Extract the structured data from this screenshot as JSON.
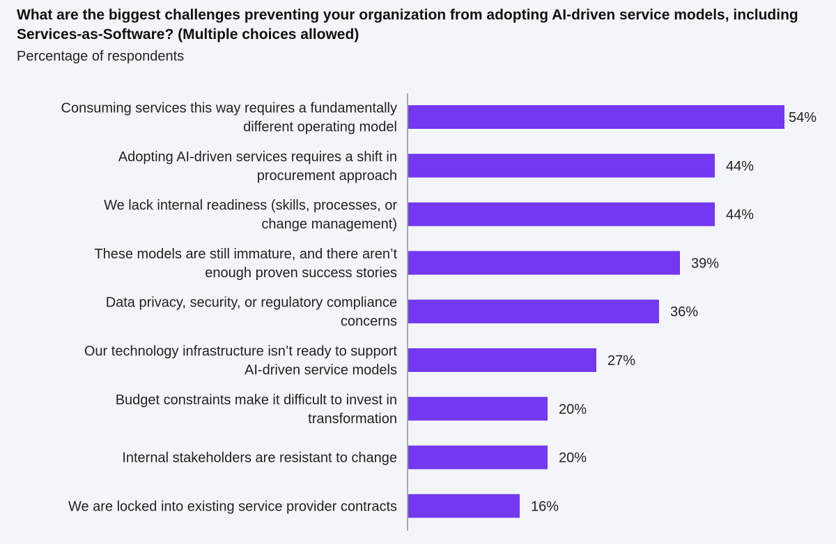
{
  "chart_data": {
    "type": "bar",
    "orientation": "horizontal",
    "title": "What are the biggest challenges preventing your organization from adopting AI-driven service models, including Services-as-Software? (Multiple choices allowed)",
    "subtitle": "Percentage of respondents",
    "xlabel": "",
    "ylabel": "",
    "xlim": [
      0,
      60
    ],
    "grid": false,
    "bar_color": "#7338f0",
    "categories": [
      [
        "Consuming services this way requires a fundamentally",
        "different operating model"
      ],
      [
        "Adopting AI-driven services requires a shift in",
        "procurement approach"
      ],
      [
        "We lack internal readiness (skills, processes, or",
        "change management)"
      ],
      [
        "These models are still immature, and there aren’t",
        "enough proven success stories"
      ],
      [
        "Data privacy, security, or regulatory compliance",
        "concerns"
      ],
      [
        "Our technology infrastructure isn’t ready to support",
        "AI-driven service models"
      ],
      [
        "Budget constraints make it difficult to invest in",
        "transformation"
      ],
      [
        "Internal stakeholders are resistant to change"
      ],
      [
        "We are locked into existing service provider contracts"
      ]
    ],
    "values": [
      54,
      44,
      44,
      39,
      36,
      27,
      20,
      20,
      16
    ],
    "value_labels": [
      "54%",
      "44%",
      "44%",
      "39%",
      "36%",
      "27%",
      "20%",
      "20%",
      "16%"
    ]
  }
}
